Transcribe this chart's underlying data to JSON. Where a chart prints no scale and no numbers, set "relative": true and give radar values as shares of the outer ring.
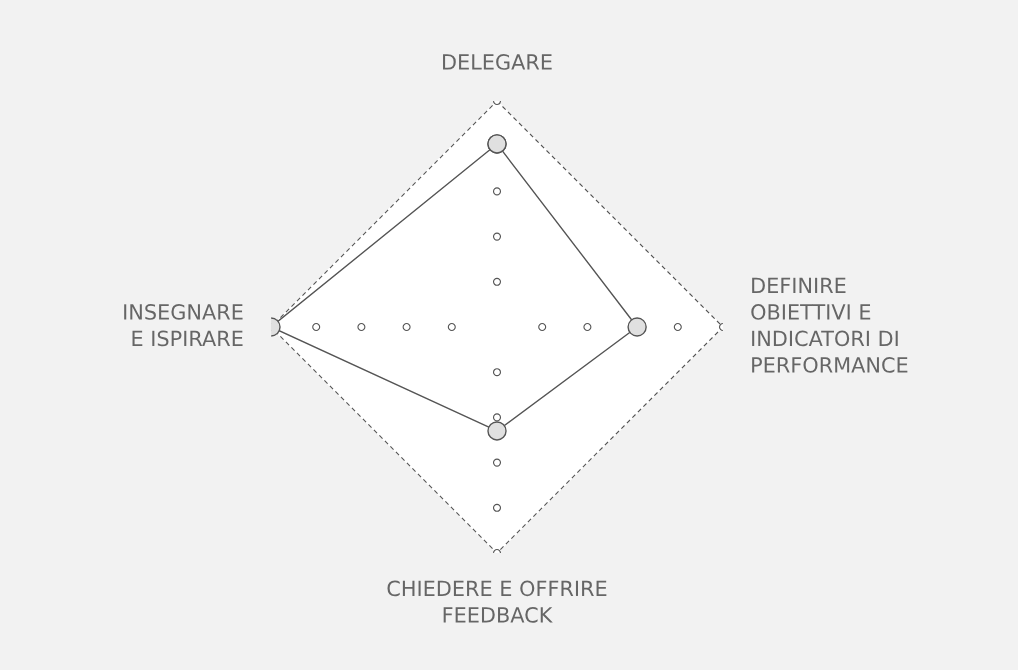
{
  "chart_data": {
    "type": "radar",
    "relative": true,
    "categories": [
      "DELEGARE",
      "DEFINIRE\nOBIETTIVI E\nINDICATORI DI\nPERFORMANCE",
      "CHIEDERE E OFFRIRE\nFEEDBACK",
      "INSEGNARE\nE ISPIRARE"
    ],
    "series": [
      {
        "color": "#555555",
        "values": [
          0.81,
          0.62,
          0.46,
          1.0
        ]
      }
    ],
    "marker": "circle",
    "line_style": "solid",
    "grid": true,
    "legend": false
  }
}
